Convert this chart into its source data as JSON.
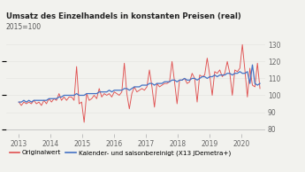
{
  "title": "Umsatz des Einzelhandels in konstanten Preisen (real)",
  "subtitle": "2015=100",
  "ylabel_right_ticks": [
    80,
    90,
    100,
    110,
    120,
    130
  ],
  "ylim": [
    77,
    134
  ],
  "xlim_start": 2012.6,
  "xlim_end": 2020.75,
  "xtick_years": [
    2013,
    2014,
    2015,
    2016,
    2017,
    2018,
    2019,
    2020
  ],
  "legend_red_label": "Originalwert",
  "legend_blue_label": "Kalender- und saisonbereinigt (X13 JDemetra+)",
  "color_red": "#e05050",
  "color_blue": "#4472c4",
  "background_color": "#f2f2ee",
  "grid_color": "#e8e8e4",
  "original": [
    96,
    94,
    96,
    95,
    96,
    95,
    97,
    95,
    96,
    94,
    97,
    95,
    98,
    96,
    98,
    97,
    101,
    97,
    99,
    97,
    99,
    99,
    97,
    117,
    95,
    96,
    84,
    101,
    97,
    98,
    100,
    98,
    104,
    99,
    101,
    100,
    101,
    99,
    102,
    101,
    100,
    102,
    119,
    101,
    92,
    101,
    105,
    102,
    103,
    104,
    103,
    105,
    115,
    105,
    93,
    107,
    105,
    106,
    107,
    107,
    108,
    120,
    108,
    95,
    109,
    109,
    110,
    107,
    108,
    113,
    110,
    96,
    112,
    111,
    112,
    122,
    112,
    100,
    114,
    113,
    115,
    111,
    113,
    120,
    113,
    100,
    115,
    114,
    116,
    130,
    115,
    99,
    116,
    106,
    105,
    119,
    104
  ],
  "seasonal": [
    96,
    96,
    97,
    96,
    97,
    96,
    97,
    97,
    97,
    97,
    97,
    97,
    98,
    98,
    98,
    98,
    99,
    99,
    100,
    100,
    100,
    100,
    100,
    101,
    100,
    100,
    100,
    101,
    101,
    101,
    101,
    101,
    102,
    102,
    102,
    102,
    103,
    102,
    103,
    103,
    103,
    103,
    104,
    104,
    103,
    104,
    105,
    105,
    105,
    106,
    106,
    106,
    107,
    107,
    106,
    107,
    107,
    107,
    108,
    108,
    108,
    109,
    109,
    108,
    109,
    109,
    110,
    109,
    109,
    110,
    110,
    109,
    110,
    111,
    111,
    110,
    111,
    111,
    112,
    111,
    112,
    112,
    112,
    113,
    113,
    112,
    113,
    113,
    114,
    113,
    113,
    114,
    107,
    118,
    107,
    106,
    107
  ],
  "title_fontsize": 6.2,
  "subtitle_fontsize": 5.5,
  "tick_fontsize": 5.5,
  "legend_fontsize": 5.2
}
